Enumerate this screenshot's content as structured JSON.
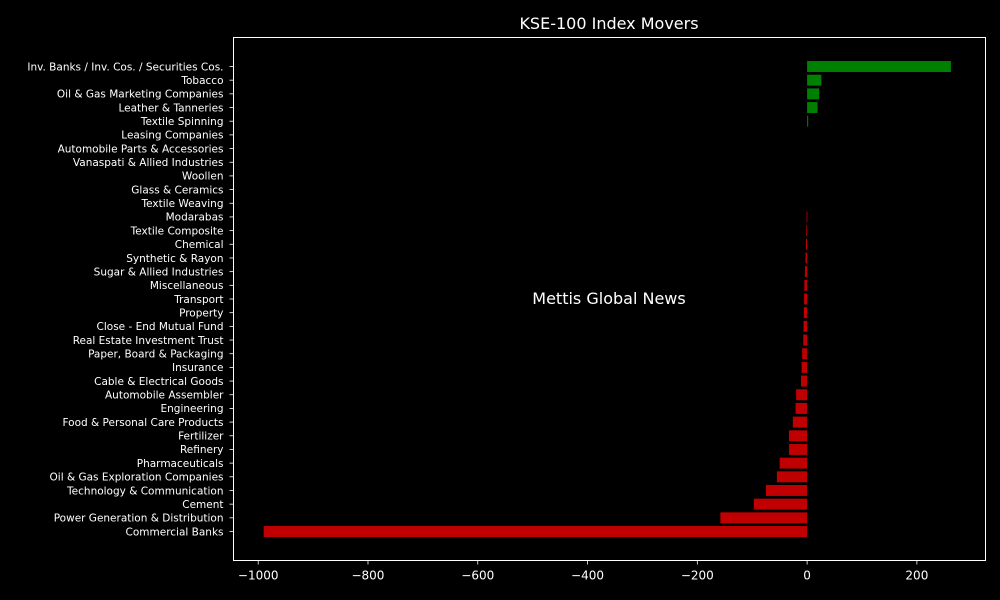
{
  "chart_data": {
    "type": "bar",
    "orientation": "horizontal",
    "title": "KSE-100 Index Movers",
    "xlabel": "",
    "ylabel": "",
    "xlim": [
      -1045,
      325
    ],
    "xticks": [
      -1000,
      -800,
      -600,
      -400,
      -200,
      0,
      200
    ],
    "grid": false,
    "watermark": "Mettis Global News",
    "colors": {
      "positive": "#008000",
      "negative": "#c00000",
      "background": "#000000",
      "axis": "#ffffff",
      "watermark": "#b0652a"
    },
    "categories": [
      "Inv. Banks / Inv. Cos. / Securities Cos.",
      "Tobacco",
      "Oil & Gas Marketing Companies",
      "Leather & Tanneries",
      "Textile Spinning",
      "Leasing Companies",
      "Automobile Parts & Accessories",
      "Vanaspati & Allied Industries",
      "Woollen",
      "Glass & Ceramics",
      "Textile Weaving",
      "Modarabas",
      "Textile Composite",
      "Chemical",
      "Synthetic & Rayon",
      "Sugar & Allied Industries",
      "Miscellaneous",
      "Transport",
      "Property",
      "Close - End Mutual Fund",
      "Real Estate Investment Trust",
      "Paper, Board & Packaging",
      "Insurance",
      "Cable & Electrical Goods",
      "Automobile Assembler",
      "Engineering",
      "Food & Personal Care Products",
      "Fertilizer",
      "Refinery",
      "Pharmaceuticals",
      "Oil & Gas Exploration Companies",
      "Technology & Communication",
      "Cement",
      "Power Generation & Distribution",
      "Commercial Banks"
    ],
    "values": [
      262,
      26,
      22,
      19,
      2,
      0,
      0,
      0,
      0,
      0,
      0,
      -1,
      -1.5,
      -2,
      -3,
      -4,
      -5,
      -5.5,
      -6,
      -6.5,
      -7,
      -9,
      -10,
      -11,
      -20,
      -21,
      -26,
      -33,
      -33,
      -50,
      -55,
      -75,
      -97,
      -158,
      -990
    ]
  }
}
